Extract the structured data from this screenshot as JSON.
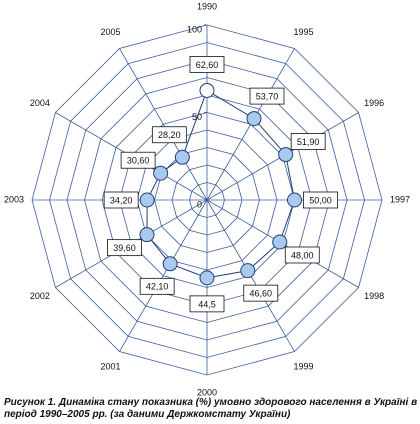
{
  "chart_data": {
    "type": "radar",
    "categories": [
      "1990",
      "1995",
      "1996",
      "1997",
      "1998",
      "1999",
      "2000",
      "2001",
      "2002",
      "2003",
      "2004",
      "2005"
    ],
    "values": [
      62.6,
      53.7,
      51.9,
      50.0,
      48.0,
      46.6,
      44.5,
      42.1,
      39.6,
      34.2,
      30.6,
      28.2
    ],
    "value_labels": [
      "62,60",
      "53,70",
      "51,90",
      "50,00",
      "48,00",
      "46,60",
      "44,5",
      "42,10",
      "39,60",
      "34,20",
      "30,60",
      "28,20"
    ],
    "rlim": [
      0,
      100
    ],
    "rticks": [
      0,
      50,
      100
    ],
    "grid": true,
    "color": "#a9c9ee",
    "line_color": "#1f3f75",
    "grid_color": "#3b5fa0",
    "point_colors": [
      "#ffffff",
      "#a9c9ee",
      "#a9c9ee",
      "#a9c9ee",
      "#a9c9ee",
      "#a9c9ee",
      "#a9c9ee",
      "#a9c9ee",
      "#a9c9ee",
      "#a9c9ee",
      "#a9c9ee",
      "#a9c9ee"
    ],
    "caption": "Рисунок 1. Динаміка стану показника (%) умовно здорового населення в Україні в період 1990–2005 рр. (за даними Держкомстату України)"
  }
}
